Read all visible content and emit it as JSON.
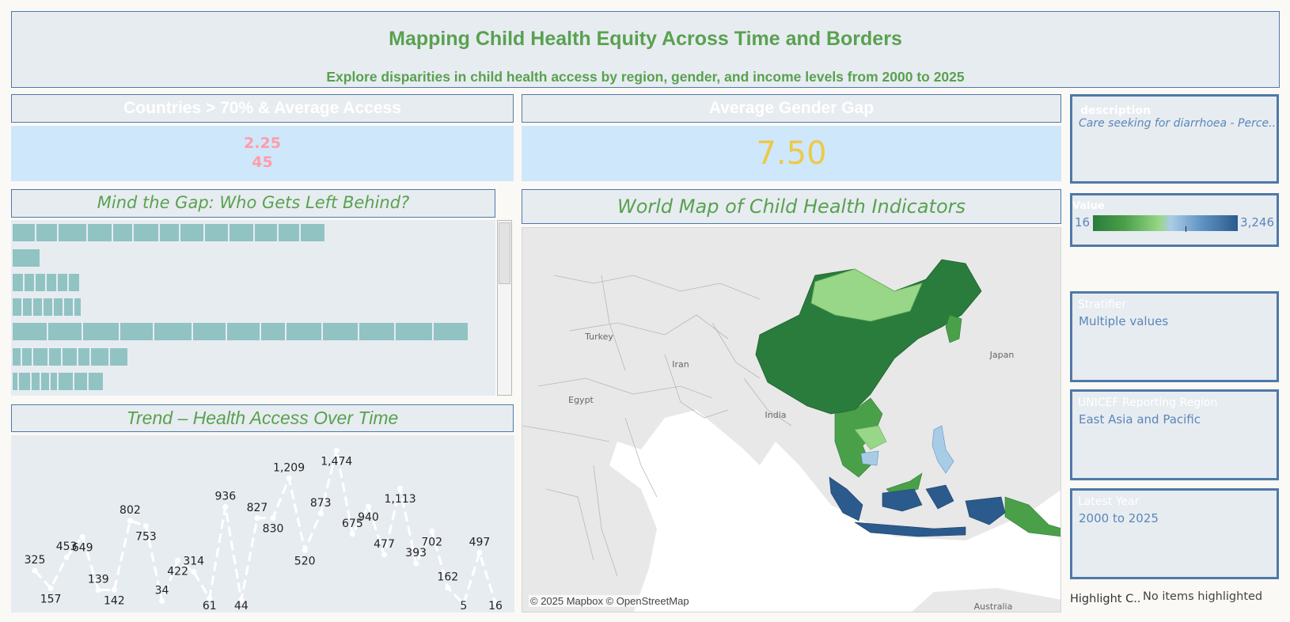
{
  "header": {
    "title": "Mapping Child Health Equity Across Time and Borders",
    "subtitle": "Explore disparities in child health access by region, gender, and income levels from 2000 to 2025"
  },
  "kpi_countries": {
    "title": "Countries > 70% & Average Access",
    "value_1": "2.25",
    "value_2": "45"
  },
  "kpi_gender_gap": {
    "title": "Average Gender Gap",
    "value": "7.50"
  },
  "gap_section": {
    "title": "Mind the Gap: Who Gets Left Behind?",
    "rows": [
      {
        "segments": 13
      },
      {
        "segments": 1
      },
      {
        "segments": 6
      },
      {
        "segments": 7
      },
      {
        "segments": 13
      },
      {
        "segments": 8
      },
      {
        "segments": 9
      }
    ]
  },
  "trend_section": {
    "title": "Trend – Health Access Over Time"
  },
  "map_section": {
    "title": "World Map of Child Health Indicators",
    "place_labels": [
      "Turkey",
      "Iran",
      "Egypt",
      "India",
      "Japan",
      "Australia"
    ],
    "attribution": "© 2025 Mapbox © OpenStreetMap"
  },
  "filters": {
    "description": {
      "label": "description",
      "value": "Care seeking for diarrhoea - Perce.."
    },
    "legend": {
      "label": "Value",
      "min": "16",
      "max": "3,246"
    },
    "stratifier": {
      "label": "Stratifier",
      "value": "Multiple values"
    },
    "region": {
      "label": "UNICEF Reporting Region",
      "value": "East Asia and Pacific"
    },
    "year": {
      "label": "Latest Year",
      "value": "2000 to 2025"
    }
  },
  "highlight": {
    "label": "Highlight C..",
    "value": "No items highlighted"
  },
  "colors": {
    "accent_green": "#59a14f",
    "border_blue": "#4e79a7",
    "kpi_pink": "#ff9da7",
    "kpi_gold": "#edc948",
    "bar_teal": "#91c3c3",
    "map_dark_green": "#2a7c3c",
    "map_light_green": "#98d787",
    "map_dark_blue": "#2b5a8c",
    "map_light_blue": "#a9cce6"
  },
  "chart_data": {
    "type": "line",
    "title": "Trend – Health Access Over Time",
    "xlabel": "",
    "ylabel": "",
    "ylim": [
      0,
      1500
    ],
    "grid": false,
    "series": [
      {
        "values": [
          325,
          157,
          453,
          649,
          139,
          142,
          802,
          753,
          34,
          422,
          314,
          61,
          936,
          44,
          827,
          830,
          1209,
          520,
          873,
          1474,
          675,
          940,
          477,
          1113,
          393,
          702,
          162,
          5,
          497,
          16
        ]
      }
    ]
  }
}
